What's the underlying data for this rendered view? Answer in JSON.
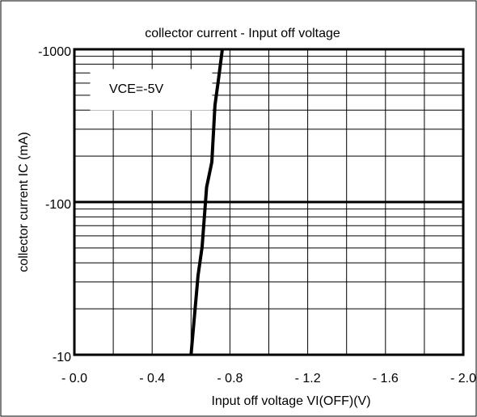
{
  "chart_data": {
    "type": "line",
    "title": "collector current - Input off voltage",
    "xlabel": "Input off voltage  VI(OFF)(V)",
    "ylabel": "collector current  IC  (mA)",
    "annotation": "VCE=-5V",
    "x": [
      -0.6,
      -0.636,
      -0.657,
      -0.68,
      -0.707,
      -0.723,
      -0.74,
      -0.761
    ],
    "values": [
      -10,
      -33,
      -51,
      -125,
      -183,
      -430,
      -620,
      -1000
    ],
    "color": "#000000",
    "xlim": [
      0,
      -2.0
    ],
    "ylim": [
      -10,
      -1000
    ],
    "xticks": [
      {
        "value": 0,
        "label": "- 0.0"
      },
      {
        "value": -0.4,
        "label": "- 0.4"
      },
      {
        "value": -0.8,
        "label": "- 0.8"
      },
      {
        "value": -1.2,
        "label": "- 1.2"
      },
      {
        "value": -1.6,
        "label": "- 1.6"
      },
      {
        "value": -2.0,
        "label": "- 2.0"
      }
    ],
    "yticks": [
      -10,
      -100,
      -1000
    ],
    "yscale": "log",
    "grid": true
  }
}
